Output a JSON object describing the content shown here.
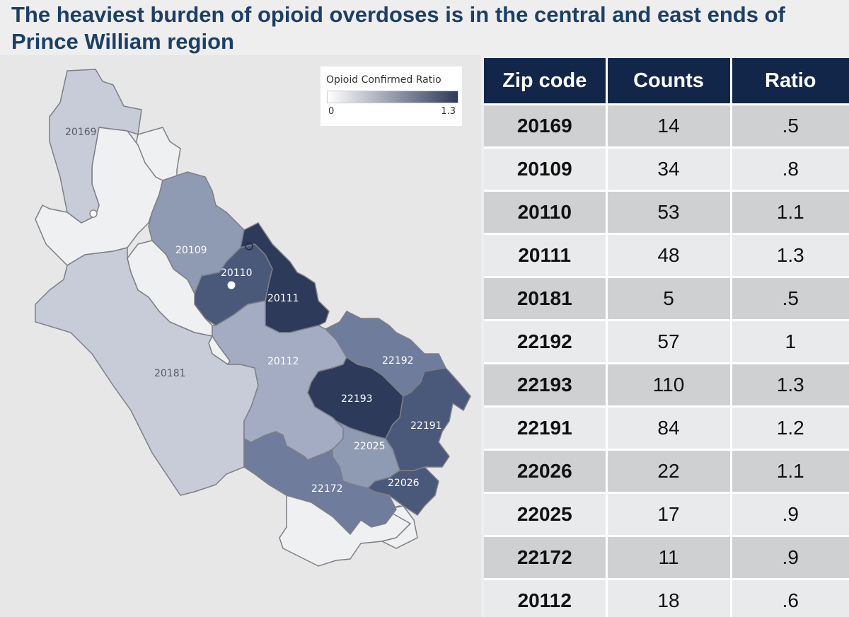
{
  "title": "The heaviest burden of opioid overdoses is in the central and east ends of Prince William region",
  "legend": {
    "title": "Opioid Confirmed Ratio",
    "min": "0",
    "max": "1.3"
  },
  "map": {
    "zip_labels": {
      "20169": "20169",
      "20109": "20109",
      "20110": "20110",
      "20111": "20111",
      "20181": "20181",
      "20112": "20112",
      "22192": "22192",
      "22193": "22193",
      "22191": "22191",
      "22025": "22025",
      "22026": "22026",
      "22172": "22172"
    },
    "colors": {
      "low": "#e6e8ee",
      "mid_low": "#c7ccd8",
      "mid": "#a3acc2",
      "mid_high": "#6f7c9b",
      "high": "#4a587a",
      "highest": "#2e3a5a",
      "outside": "#eff0f2"
    }
  },
  "table": {
    "headers": [
      "Zip code",
      "Counts",
      "Ratio"
    ],
    "rows": [
      [
        "20169",
        "14",
        ".5"
      ],
      [
        "20109",
        "34",
        ".8"
      ],
      [
        "20110",
        "53",
        "1.1"
      ],
      [
        "20111",
        "48",
        "1.3"
      ],
      [
        "20181",
        "5",
        ".5"
      ],
      [
        "22192",
        "57",
        "1"
      ],
      [
        "22193",
        "110",
        "1.3"
      ],
      [
        "22191",
        "84",
        "1.2"
      ],
      [
        "22026",
        "22",
        "1.1"
      ],
      [
        "22025",
        "17",
        ".9"
      ],
      [
        "22172",
        "11",
        ".9"
      ],
      [
        "20112",
        "18",
        ".6"
      ]
    ]
  }
}
